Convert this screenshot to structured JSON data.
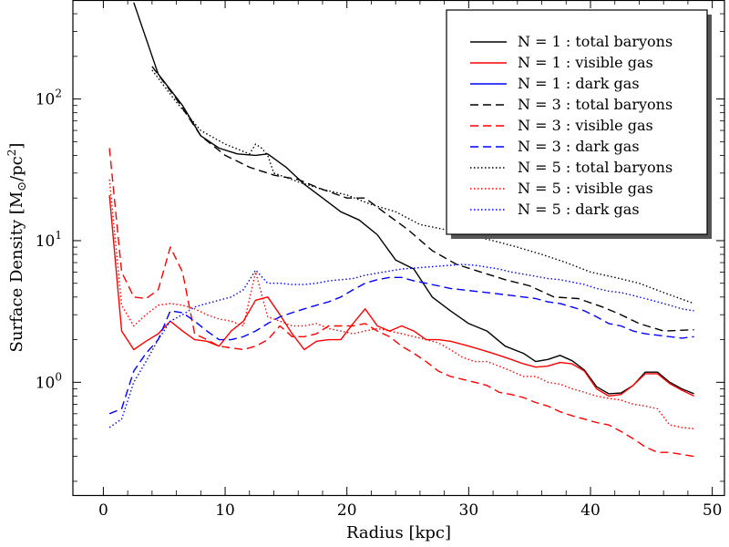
{
  "chart_data": {
    "type": "line",
    "xlabel": "Radius [kpc]",
    "ylabel": "Surface Density [M⊙/pc²]",
    "ylabel_main": "Surface Density [M",
    "ylabel_sub": "⊙",
    "ylabel_unit": "/pc",
    "ylabel_sup": "2",
    "ylabel_close": "]",
    "xlim": [
      -2.5,
      51
    ],
    "ylim_log": [
      0.16,
      500
    ],
    "yscale": "log",
    "legend_position": "top-right",
    "x_ticks": [
      0,
      10,
      20,
      30,
      40,
      50
    ],
    "x_tick_labels": [
      "0",
      "10",
      "20",
      "30",
      "40",
      "50"
    ],
    "y_ticks": [
      {
        "value": 1,
        "base": "10",
        "exp": "0"
      },
      {
        "value": 10,
        "base": "10",
        "exp": "1"
      },
      {
        "value": 100,
        "base": "10",
        "exp": "2"
      }
    ],
    "series": [
      {
        "name": "N = 1 : total baryons",
        "color": "#000000",
        "dash": "solid",
        "x": [
          2.5,
          4.5,
          6.5,
          8,
          9.5,
          11,
          12.5,
          13.5,
          15,
          16.5,
          18,
          19.5,
          21,
          22.5,
          24,
          25.5,
          27,
          28.5,
          30,
          31.5,
          33,
          34.5,
          35.5,
          36.5,
          37.5,
          38.5,
          39.5,
          40.5,
          41.5,
          42.5,
          43.5,
          44.5,
          45.5,
          46.5,
          47.5,
          48.5
        ],
        "y": [
          480,
          150,
          90,
          55,
          45,
          41,
          40,
          41,
          33,
          25,
          20,
          16,
          14,
          11,
          7.3,
          6.3,
          4.0,
          3.2,
          2.6,
          2.3,
          1.8,
          1.6,
          1.4,
          1.45,
          1.55,
          1.42,
          1.22,
          0.93,
          0.83,
          0.84,
          0.95,
          1.18,
          1.18,
          1.0,
          0.9,
          0.83
        ]
      },
      {
        "name": "N = 1 : visible gas",
        "color": "#ff0000",
        "dash": "solid",
        "x": [
          0.5,
          1.5,
          2.5,
          3.5,
          4.5,
          5.5,
          6.5,
          7.5,
          8.5,
          9.5,
          10.5,
          11.5,
          12.5,
          13.5,
          14.5,
          15.5,
          16.5,
          17.5,
          18.5,
          19.5,
          20.5,
          21.5,
          22.5,
          23.5,
          24.5,
          25.5,
          26.5,
          27.5,
          28.5,
          29.5,
          30.5,
          31.5,
          32.5,
          33.5,
          34.5,
          35.5,
          36.5,
          37.5,
          38.5,
          39.5,
          40.5,
          41.5,
          42.5,
          43.5,
          44.5,
          45.5,
          46.5,
          47.5,
          48.5
        ],
        "y": [
          21,
          2.3,
          1.7,
          1.95,
          2.2,
          2.7,
          2.3,
          2.0,
          1.95,
          1.8,
          2.3,
          2.7,
          3.8,
          4.0,
          3.0,
          2.2,
          1.7,
          1.95,
          2.0,
          2.0,
          2.6,
          3.3,
          2.5,
          2.3,
          2.5,
          2.3,
          2.0,
          2.0,
          1.95,
          1.85,
          1.75,
          1.65,
          1.55,
          1.45,
          1.35,
          1.28,
          1.3,
          1.38,
          1.35,
          1.2,
          0.9,
          0.8,
          0.82,
          0.95,
          1.15,
          1.15,
          0.98,
          0.88,
          0.8
        ]
      },
      {
        "name": "N = 1 : dark gas",
        "color": "#0000ff",
        "dash": "solid",
        "x": [],
        "y": []
      },
      {
        "name": "N = 3 : total baryons",
        "color": "#000000",
        "dash": "dashed",
        "x": [
          4,
          6,
          8,
          10,
          12,
          14,
          16,
          18,
          20,
          21.5,
          23,
          25,
          27,
          29,
          31,
          33,
          35,
          37,
          39,
          41,
          42.5,
          44,
          46,
          48.5
        ],
        "y": [
          170,
          100,
          55,
          40,
          33,
          29,
          27,
          23,
          20,
          20,
          16,
          12,
          8.5,
          6.8,
          6.0,
          5.3,
          4.8,
          4.0,
          3.9,
          3.4,
          3.0,
          2.6,
          2.3,
          2.35
        ]
      },
      {
        "name": "N = 3 : visible gas",
        "color": "#ff0000",
        "dash": "dashed",
        "x": [
          0.5,
          1.5,
          2.5,
          3.5,
          4.5,
          5.5,
          6.5,
          7.5,
          8.5,
          9.5,
          10.5,
          11.5,
          12.5,
          13.5,
          14.5,
          15.5,
          16.5,
          17.5,
          18.5,
          19.5,
          20.5,
          21.5,
          22.5,
          23.5,
          24.5,
          25.5,
          26.5,
          27.5,
          28.5,
          29.5,
          30.5,
          31.5,
          32.5,
          33.5,
          34.5,
          35.5,
          36.5,
          37.5,
          38.5,
          39.5,
          40.5,
          41.5,
          42.5,
          43.5,
          44.5,
          45.5,
          46.5,
          47.5,
          48.5
        ],
        "y": [
          45,
          6,
          4.0,
          3.9,
          4.5,
          9,
          6,
          2.2,
          2.0,
          1.8,
          1.75,
          1.7,
          1.8,
          2.0,
          2.5,
          2.1,
          2.1,
          2.2,
          2.5,
          2.5,
          2.5,
          2.6,
          2.3,
          2.1,
          1.8,
          1.6,
          1.4,
          1.2,
          1.1,
          1.05,
          1.0,
          0.95,
          0.85,
          0.82,
          0.78,
          0.72,
          0.68,
          0.62,
          0.58,
          0.55,
          0.52,
          0.5,
          0.45,
          0.4,
          0.35,
          0.32,
          0.32,
          0.31,
          0.3
        ]
      },
      {
        "name": "N = 3 : dark gas",
        "color": "#0000ff",
        "dash": "dashed",
        "x": [
          0.5,
          1.5,
          2.5,
          3.5,
          4.5,
          5.5,
          6.5,
          7.5,
          8.5,
          9.5,
          10.5,
          11.5,
          12.5,
          13.5,
          14.5,
          15.5,
          16.5,
          17.5,
          18.5,
          19.5,
          20.5,
          21.5,
          22.5,
          23.5,
          24.5,
          25.5,
          26.5,
          27.5,
          28.5,
          29.5,
          30.5,
          31.5,
          32.5,
          33.5,
          34.5,
          35.5,
          36.5,
          37.5,
          38.5,
          39.5,
          40.5,
          41.5,
          42.5,
          43.5,
          44.5,
          45.5,
          46.5,
          47.5,
          48.5
        ],
        "y": [
          0.6,
          0.65,
          1.2,
          1.6,
          2.0,
          3.2,
          3.1,
          2.7,
          2.3,
          2.0,
          2.0,
          2.1,
          2.3,
          2.6,
          2.9,
          3.1,
          3.3,
          3.5,
          3.7,
          4.0,
          4.5,
          5.0,
          5.3,
          5.5,
          5.5,
          5.2,
          5.0,
          4.8,
          4.6,
          4.5,
          4.4,
          4.3,
          4.2,
          4.1,
          4.0,
          3.9,
          3.7,
          3.6,
          3.4,
          3.2,
          2.9,
          2.6,
          2.5,
          2.3,
          2.2,
          2.15,
          2.1,
          2.05,
          2.1
        ]
      },
      {
        "name": "N = 5 : total baryons",
        "color": "#000000",
        "dash": "dotted",
        "x": [
          4,
          6,
          8,
          10,
          12,
          12.5,
          13,
          13.5,
          14,
          16,
          18,
          20,
          22,
          24,
          26,
          28,
          30,
          32,
          34,
          36,
          38,
          40,
          42,
          44,
          46,
          48.5
        ],
        "y": [
          160,
          95,
          60,
          48,
          41,
          48,
          45,
          40,
          30,
          26,
          23,
          21,
          18,
          16,
          13,
          12,
          11,
          10,
          9,
          8,
          7,
          6,
          5.5,
          5,
          4.3,
          3.6
        ]
      },
      {
        "name": "N = 5 : visible gas",
        "color": "#ff0000",
        "dash": "dotted",
        "x": [
          0.5,
          1.5,
          2.5,
          3.5,
          4.5,
          5.5,
          6.5,
          7.5,
          8.5,
          9.5,
          10.5,
          11.5,
          12.5,
          13.5,
          14.5,
          15.5,
          16.5,
          17.5,
          18.5,
          19.5,
          20.5,
          21.5,
          22.5,
          23.5,
          24.5,
          25.5,
          26.5,
          27.5,
          28.5,
          29.5,
          30.5,
          31.5,
          32.5,
          33.5,
          34.5,
          35.5,
          36.5,
          37.5,
          38.5,
          39.5,
          40.5,
          41.5,
          42.5,
          43.5,
          44.5,
          45.5,
          46.5,
          47.5,
          48.5
        ],
        "y": [
          27,
          3.5,
          2.5,
          3.0,
          3.5,
          3.6,
          3.5,
          3.3,
          3.0,
          2.8,
          2.7,
          2.5,
          6.0,
          2.9,
          2.7,
          2.5,
          2.5,
          2.6,
          2.4,
          2.3,
          2.2,
          2.3,
          2.4,
          2.3,
          2.2,
          2.1,
          2.0,
          1.9,
          1.7,
          1.5,
          1.4,
          1.4,
          1.3,
          1.2,
          1.1,
          1.1,
          1.0,
          0.97,
          0.9,
          0.85,
          0.8,
          0.77,
          0.75,
          0.7,
          0.68,
          0.65,
          0.5,
          0.48,
          0.47
        ]
      },
      {
        "name": "N = 5 : dark gas",
        "color": "#0000ff",
        "dash": "dotted",
        "x": [
          0.5,
          1.5,
          2.5,
          3.5,
          4.5,
          5.5,
          6.5,
          7.5,
          8.5,
          9.5,
          10.5,
          11.5,
          12.5,
          13.5,
          14.5,
          15.5,
          16.5,
          17.5,
          18.5,
          19.5,
          20.5,
          21.5,
          22.5,
          23.5,
          24.5,
          25.5,
          26.5,
          27.5,
          28.5,
          29.5,
          30.5,
          31.5,
          32.5,
          33.5,
          34.5,
          35.5,
          36.5,
          37.5,
          38.5,
          39.5,
          40.5,
          41.5,
          42.5,
          43.5,
          44.5,
          45.5,
          46.5,
          47.5,
          48.5
        ],
        "y": [
          0.48,
          0.55,
          1.0,
          1.4,
          2.0,
          2.7,
          3.0,
          3.4,
          3.6,
          3.8,
          4.0,
          4.5,
          6.2,
          5.0,
          5.0,
          4.9,
          4.9,
          5.0,
          5.2,
          5.3,
          5.4,
          5.7,
          5.9,
          6.1,
          6.3,
          6.4,
          6.5,
          6.6,
          6.7,
          6.8,
          6.7,
          6.5,
          6.3,
          6.0,
          5.8,
          5.6,
          5.4,
          5.3,
          5.1,
          4.9,
          4.6,
          4.4,
          4.3,
          4.1,
          3.9,
          3.7,
          3.5,
          3.3,
          3.2
        ]
      }
    ]
  }
}
